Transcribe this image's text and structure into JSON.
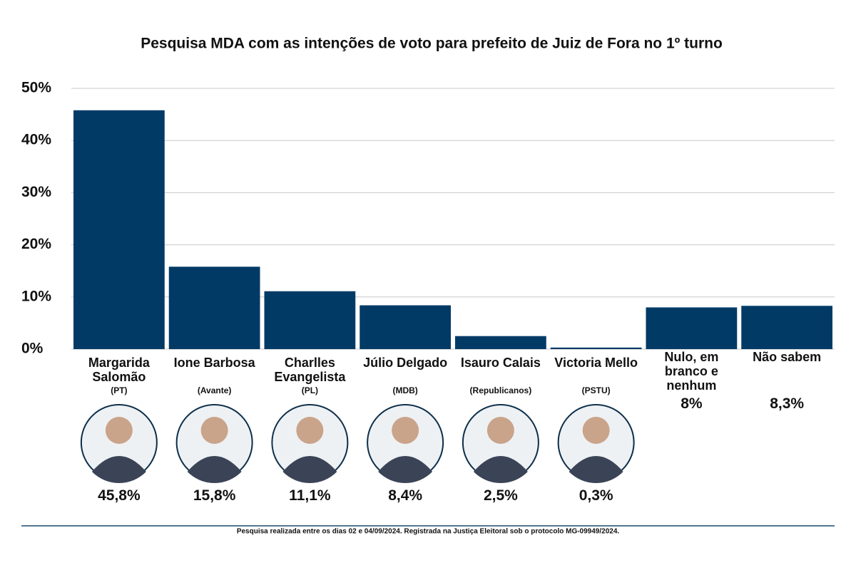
{
  "chart_data": {
    "type": "bar",
    "title": "Pesquisa MDA com as intenções de voto para prefeito de Juiz de Fora no 1º turno",
    "categories": [
      "Margarida Salomão",
      "Ione Barbosa",
      "Charlles Evangelista",
      "Júlio Delgado",
      "Isauro Calais",
      "Victoria Mello",
      "Nulo, em branco e nenhum",
      "Não sabem"
    ],
    "parties": [
      "(PT)",
      "(Avante)",
      "(PL)",
      "(MDB)",
      "(Republicanos)",
      "(PSTU)",
      null,
      null
    ],
    "values": [
      45.8,
      15.8,
      11.1,
      8.4,
      2.5,
      0.3,
      8,
      8.3
    ],
    "value_labels": [
      "45,8%",
      "15,8%",
      "11,1%",
      "8,4%",
      "2,5%",
      "0,3%",
      "8%",
      "8,3%"
    ],
    "color": "#023a66",
    "ylim": [
      0,
      50
    ],
    "yticks": [
      {
        "value": 0,
        "label": "0%"
      },
      {
        "value": 10,
        "label": "10%"
      },
      {
        "value": 20,
        "label": "20%"
      },
      {
        "value": 30,
        "label": "30%"
      },
      {
        "value": 40,
        "label": "40%"
      },
      {
        "value": 50,
        "label": "50%"
      }
    ],
    "grid": true,
    "footnote": "Pesquisa realizada entre os dias 02 e 04/09/2024. Registrada na Justiça Eleitoral sob o protocolo MG-09949/2024."
  }
}
